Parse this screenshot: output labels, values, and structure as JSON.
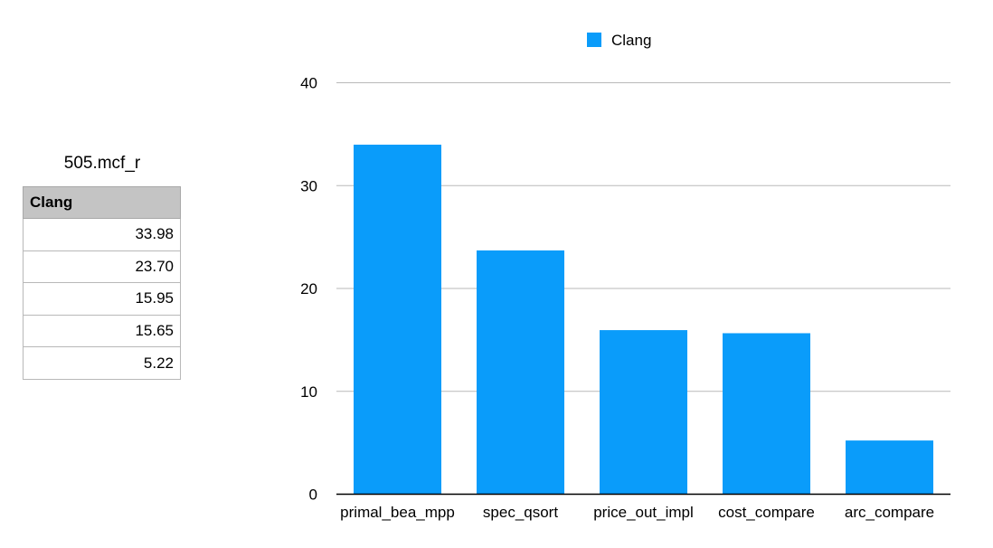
{
  "table": {
    "title": "505.mcf_r",
    "header": "Clang",
    "rows": [
      "33.98",
      "23.70",
      "15.95",
      "15.65",
      "5.22"
    ]
  },
  "chart_data": {
    "type": "bar",
    "categories": [
      "primal_bea_mpp",
      "spec_qsort",
      "price_out_impl",
      "cost_compare",
      "arc_compare"
    ],
    "series": [
      {
        "name": "Clang",
        "values": [
          33.98,
          23.7,
          15.95,
          15.65,
          5.22
        ],
        "color": "#0a9cfa"
      }
    ],
    "yticks": [
      0,
      10,
      20,
      30,
      40
    ],
    "ylim": [
      0,
      40
    ],
    "grid": true,
    "legend": "top-center"
  }
}
